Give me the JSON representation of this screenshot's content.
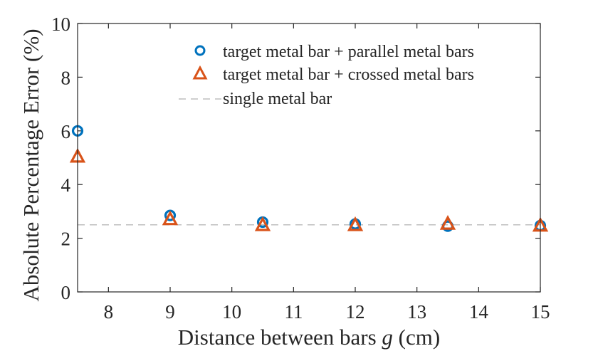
{
  "chart_data": {
    "type": "scatter",
    "xlabel_main": "Distance between bars ",
    "xlabel_var": "g",
    "xlabel_unit": " (cm)",
    "ylabel": "Absolute Percentage Error (%)",
    "xlim": [
      7.5,
      15
    ],
    "ylim": [
      0,
      10
    ],
    "xticks": [
      8,
      9,
      10,
      11,
      12,
      13,
      14,
      15
    ],
    "yticks": [
      0,
      2,
      4,
      6,
      8,
      10
    ],
    "series": [
      {
        "name": "target metal bar + parallel metal bars",
        "marker": "circle",
        "color": "#0072BD",
        "x": [
          7.5,
          9,
          10.5,
          12,
          13.5,
          15
        ],
        "y": [
          6.0,
          2.85,
          2.6,
          2.53,
          2.45,
          2.47
        ]
      },
      {
        "name": "target metal bar + crossed metal bars",
        "marker": "triangle",
        "color": "#D95319",
        "x": [
          7.5,
          9,
          10.5,
          12,
          13.5,
          15
        ],
        "y": [
          5.05,
          2.72,
          2.5,
          2.5,
          2.55,
          2.48
        ]
      }
    ],
    "reference_line": {
      "name": "single metal bar",
      "y": 2.5,
      "color": "#bfbfbf",
      "style": "dashed"
    }
  }
}
